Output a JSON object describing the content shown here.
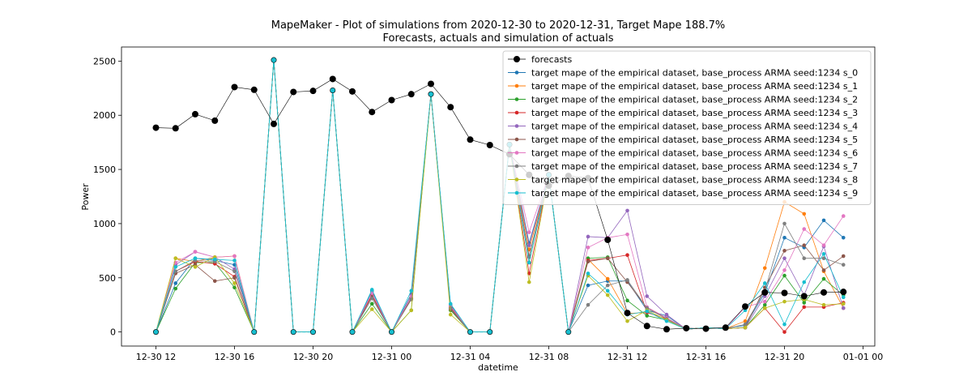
{
  "chart_data": {
    "type": "line",
    "title": "MapeMaker - Plot of simulations from 2020-12-30 to 2020-12-31, Target Mape 188.7%",
    "subtitle": "Forecasts, actuals and simulation of actuals",
    "xlabel": "datetime",
    "ylabel": "Power",
    "x_start_label": "12-30 12",
    "ylim": [
      -130,
      2630
    ],
    "y_ticks": [
      0,
      500,
      1000,
      1500,
      2000,
      2500
    ],
    "x_ticks": [
      "12-30 12",
      "12-30 16",
      "12-30 20",
      "12-31 00",
      "12-31 04",
      "12-31 08",
      "12-31 12",
      "12-31 16",
      "12-31 20",
      "01-01 00"
    ],
    "grid": false,
    "legend_position": "top-right",
    "forecasts": {
      "name": "forecasts",
      "color": "#000000",
      "values": [
        1885,
        1880,
        2010,
        1950,
        2260,
        2235,
        1920,
        2215,
        2225,
        2335,
        2220,
        2030,
        2140,
        2195,
        2290,
        2075,
        1775,
        1725,
        1640,
        1450,
        1350,
        1440,
        1420,
        850,
        175,
        55,
        25,
        35,
        30,
        40,
        235,
        365,
        360,
        330,
        365,
        370
      ]
    },
    "common_values": [
      0,
      null,
      null,
      null,
      null,
      0,
      2510,
      0,
      0,
      2230,
      0,
      null,
      0,
      null,
      2195,
      null,
      0,
      0,
      1730,
      null,
      1450,
      0
    ],
    "series": [
      {
        "name": "target mape  of the empirical dataset, base_process ARMA  seed:1234 s_0",
        "color": "#1f77b4",
        "values": [
          0,
          450,
          680,
          660,
          620,
          0,
          2510,
          0,
          0,
          2230,
          0,
          380,
          0,
          350,
          2195,
          250,
          0,
          0,
          1730,
          820,
          1450,
          0,
          430,
          470,
          470,
          200,
          150,
          25,
          40,
          35,
          60,
          360,
          870,
          780,
          1030,
          870
        ]
      },
      {
        "name": "target mape  of the empirical dataset, base_process ARMA  seed:1234 s_1",
        "color": "#ff7f0e",
        "values": [
          0,
          680,
          650,
          690,
          700,
          0,
          2510,
          0,
          0,
          2230,
          0,
          340,
          0,
          300,
          2195,
          220,
          0,
          0,
          1730,
          760,
          1450,
          0,
          670,
          490,
          170,
          180,
          120,
          25,
          40,
          30,
          100,
          590,
          1200,
          1090,
          560,
          220
        ]
      },
      {
        "name": "target mape  of the empirical dataset, base_process ARMA  seed:1234 s_2",
        "color": "#2ca02c",
        "values": [
          0,
          400,
          640,
          640,
          410,
          0,
          2510,
          0,
          0,
          2230,
          0,
          260,
          0,
          200,
          2195,
          200,
          0,
          0,
          1730,
          640,
          1450,
          0,
          680,
          690,
          290,
          150,
          110,
          25,
          40,
          30,
          40,
          250,
          520,
          270,
          490,
          340
        ]
      },
      {
        "name": "target mape  of the empirical dataset, base_process ARMA  seed:1234 s_3",
        "color": "#d62728",
        "values": [
          0,
          560,
          650,
          630,
          510,
          0,
          2510,
          0,
          0,
          2230,
          0,
          340,
          0,
          310,
          2195,
          230,
          0,
          0,
          1730,
          540,
          1450,
          0,
          660,
          680,
          710,
          180,
          120,
          25,
          40,
          30,
          40,
          220,
          0,
          230,
          230,
          270
        ]
      },
      {
        "name": "target mape  of the empirical dataset, base_process ARMA  seed:1234 s_4",
        "color": "#9467bd",
        "values": [
          0,
          620,
          740,
          690,
          580,
          0,
          2510,
          0,
          0,
          2230,
          0,
          360,
          0,
          330,
          2195,
          240,
          0,
          0,
          1730,
          800,
          1450,
          0,
          880,
          870,
          1120,
          330,
          160,
          25,
          40,
          30,
          40,
          330,
          680,
          340,
          790,
          220
        ]
      },
      {
        "name": "target mape  of the empirical dataset, base_process ARMA  seed:1234 s_5",
        "color": "#8c564b",
        "values": [
          0,
          540,
          620,
          470,
          500,
          0,
          2510,
          0,
          0,
          2230,
          0,
          330,
          0,
          310,
          2195,
          210,
          0,
          0,
          1730,
          700,
          1450,
          0,
          650,
          680,
          460,
          220,
          130,
          25,
          40,
          30,
          40,
          410,
          750,
          800,
          570,
          700
        ]
      },
      {
        "name": "target mape  of the empirical dataset, base_process ARMA  seed:1234 s_6",
        "color": "#e377c2",
        "values": [
          0,
          640,
          740,
          690,
          700,
          0,
          2510,
          0,
          0,
          2230,
          0,
          360,
          0,
          330,
          2195,
          240,
          0,
          0,
          1730,
          920,
          1450,
          0,
          780,
          870,
          900,
          230,
          130,
          25,
          40,
          30,
          230,
          280,
          570,
          950,
          800,
          1070
        ]
      },
      {
        "name": "target mape  of the empirical dataset, base_process ARMA  seed:1234 s_7",
        "color": "#7f7f7f",
        "values": [
          0,
          560,
          660,
          650,
          560,
          0,
          2510,
          0,
          0,
          2230,
          0,
          310,
          0,
          300,
          2195,
          220,
          0,
          0,
          1730,
          690,
          1450,
          0,
          250,
          430,
          480,
          220,
          120,
          25,
          40,
          30,
          70,
          380,
          1000,
          680,
          680,
          620
        ]
      },
      {
        "name": "target mape  of the empirical dataset, base_process ARMA  seed:1234 s_8",
        "color": "#bcbd22",
        "values": [
          0,
          680,
          600,
          690,
          450,
          0,
          2510,
          0,
          0,
          2230,
          0,
          210,
          0,
          200,
          2195,
          160,
          0,
          0,
          1730,
          460,
          1450,
          0,
          520,
          340,
          100,
          200,
          110,
          25,
          40,
          30,
          40,
          220,
          280,
          300,
          250,
          260
        ]
      },
      {
        "name": "target mape  of the empirical dataset, base_process ARMA  seed:1234 s_9",
        "color": "#17becf",
        "values": [
          0,
          600,
          680,
          670,
          660,
          0,
          2510,
          0,
          0,
          2230,
          0,
          390,
          0,
          380,
          2195,
          260,
          0,
          0,
          1730,
          640,
          1450,
          0,
          540,
          380,
          160,
          190,
          100,
          25,
          40,
          30,
          200,
          450,
          70,
          460,
          720,
          320
        ]
      }
    ]
  }
}
